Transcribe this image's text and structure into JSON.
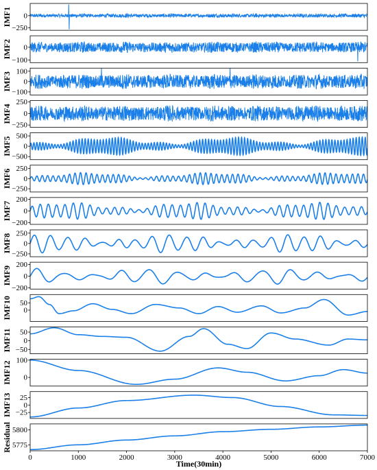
{
  "chart_data": {
    "type": "line",
    "title": "",
    "xlabel": "Time(30min)",
    "x_range": [
      0,
      7000
    ],
    "x_ticks": [
      0,
      1000,
      2000,
      3000,
      4000,
      5000,
      6000,
      7000
    ],
    "x_tick_labels": [
      "0",
      "1000",
      "2000",
      "3000",
      "4000",
      "5000",
      "6000",
      "7000"
    ],
    "line_color": "#1a7fe8",
    "grid": false,
    "legend": "none",
    "panels": [
      {
        "name": "IMF1",
        "ylim": [
          -300,
          250
        ],
        "yticks": [
          0,
          -250
        ],
        "ytick_labels": [
          "0",
          "−250"
        ],
        "kind": "noise",
        "amplitude": 40,
        "spikes": [
          {
            "x": 800,
            "value": 230
          },
          {
            "x": 810,
            "value": -280
          }
        ]
      },
      {
        "name": "IMF2",
        "ylim": [
          -120,
          90
        ],
        "yticks": [
          0,
          -100
        ],
        "ytick_labels": [
          "0",
          "−100"
        ],
        "kind": "noise",
        "amplitude": 45,
        "spikes": [
          {
            "x": 6800,
            "value": -110
          }
        ]
      },
      {
        "name": "IMF3",
        "ylim": [
          -130,
          130
        ],
        "yticks": [
          100,
          0,
          -100
        ],
        "ytick_labels": [
          "100",
          "0",
          "−100"
        ],
        "kind": "noise",
        "amplitude": 75,
        "spikes": [
          {
            "x": 1480,
            "value": 130
          },
          {
            "x": 4150,
            "value": 130
          }
        ]
      },
      {
        "name": "IMF4",
        "ylim": [
          -300,
          280
        ],
        "yticks": [
          250,
          0,
          -250
        ],
        "ytick_labels": [
          "250",
          "0",
          "−250"
        ],
        "kind": "noise",
        "amplitude": 180,
        "spikes": []
      },
      {
        "name": "IMF5",
        "ylim": [
          -650,
          650
        ],
        "yticks": [
          500,
          0,
          -500
        ],
        "ytick_labels": [
          "500",
          "0",
          "−500"
        ],
        "kind": "oscillation",
        "cycles": 112,
        "amplitude": 450,
        "spikes": []
      },
      {
        "name": "IMF6",
        "ylim": [
          -330,
          330
        ],
        "yticks": [
          250,
          0,
          -250
        ],
        "ytick_labels": [
          "250",
          "0",
          "−250"
        ],
        "kind": "oscillation",
        "cycles": 62,
        "amplitude": 150,
        "spikes": []
      },
      {
        "name": "IMF7",
        "ylim": [
          -230,
          230
        ],
        "yticks": [
          200,
          0,
          -200
        ],
        "ytick_labels": [
          "200",
          "0",
          "−200"
        ],
        "kind": "oscillation",
        "cycles": 41,
        "amplitude": 150,
        "spikes": []
      },
      {
        "name": "IMF8",
        "ylim": [
          -320,
          330
        ],
        "yticks": [
          250,
          0,
          -250
        ],
        "ytick_labels": [
          "250",
          "0",
          "−250"
        ],
        "kind": "oscillation",
        "cycles": 20,
        "amplitude": 230,
        "spikes": []
      },
      {
        "name": "IMF9",
        "ylim": [
          -220,
          240
        ],
        "yticks": [
          200,
          0,
          -200
        ],
        "ytick_labels": [
          "200",
          "0",
          "−200"
        ],
        "kind": "oscillation",
        "cycles": 12,
        "amplitude": 140,
        "spikes": []
      },
      {
        "name": "IMF10",
        "ylim": [
          -80,
          110
        ],
        "yticks": [
          50,
          0
        ],
        "ytick_labels": [
          "50",
          "0"
        ],
        "kind": "smooth",
        "points": [
          [
            0,
            80
          ],
          [
            180,
            95
          ],
          [
            400,
            40
          ],
          [
            600,
            -25
          ],
          [
            900,
            -5
          ],
          [
            1300,
            45
          ],
          [
            1700,
            5
          ],
          [
            2100,
            -25
          ],
          [
            2600,
            40
          ],
          [
            3100,
            15
          ],
          [
            3500,
            -25
          ],
          [
            3900,
            25
          ],
          [
            4300,
            -15
          ],
          [
            4800,
            30
          ],
          [
            5200,
            -20
          ],
          [
            5700,
            15
          ],
          [
            6100,
            75
          ],
          [
            6600,
            -35
          ],
          [
            7000,
            -10
          ]
        ]
      },
      {
        "name": "IMF11",
        "ylim": [
          -75,
          80
        ],
        "yticks": [
          50,
          0,
          -50
        ],
        "ytick_labels": [
          "50",
          "0",
          "−50"
        ],
        "kind": "smooth",
        "points": [
          [
            0,
            40
          ],
          [
            500,
            75
          ],
          [
            1000,
            35
          ],
          [
            1500,
            25
          ],
          [
            2000,
            20
          ],
          [
            2700,
            -60
          ],
          [
            3300,
            25
          ],
          [
            3600,
            70
          ],
          [
            4100,
            -20
          ],
          [
            4500,
            -45
          ],
          [
            5000,
            45
          ],
          [
            5500,
            10
          ],
          [
            6200,
            -25
          ],
          [
            6600,
            10
          ],
          [
            7000,
            5
          ]
        ]
      },
      {
        "name": "IMF12",
        "ylim": [
          -50,
          105
        ],
        "yticks": [
          100,
          0
        ],
        "ytick_labels": [
          "100",
          "0"
        ],
        "kind": "smooth",
        "points": [
          [
            0,
            100
          ],
          [
            1000,
            40
          ],
          [
            2200,
            -40
          ],
          [
            3000,
            -10
          ],
          [
            3900,
            55
          ],
          [
            4500,
            30
          ],
          [
            5300,
            -20
          ],
          [
            6000,
            10
          ],
          [
            6500,
            45
          ],
          [
            7000,
            25
          ]
        ]
      },
      {
        "name": "IMF13",
        "ylim": [
          -45,
          45
        ],
        "yticks": [
          25,
          0,
          -25
        ],
        "ytick_labels": [
          "25",
          "0",
          "−25"
        ],
        "kind": "smooth",
        "points": [
          [
            0,
            -40
          ],
          [
            1000,
            -10
          ],
          [
            2000,
            15
          ],
          [
            3400,
            33
          ],
          [
            4200,
            25
          ],
          [
            5200,
            -5
          ],
          [
            6300,
            -33
          ],
          [
            7000,
            -35
          ]
        ]
      },
      {
        "name": "Residual",
        "ylim": [
          5765,
          5810
        ],
        "yticks": [
          5800,
          5775
        ],
        "ytick_labels": [
          "5800",
          "5775"
        ],
        "kind": "smooth",
        "points": [
          [
            0,
            5767
          ],
          [
            1000,
            5775
          ],
          [
            2000,
            5783
          ],
          [
            3000,
            5790
          ],
          [
            4000,
            5797
          ],
          [
            5000,
            5801
          ],
          [
            6000,
            5805
          ],
          [
            7000,
            5808
          ]
        ]
      }
    ]
  }
}
